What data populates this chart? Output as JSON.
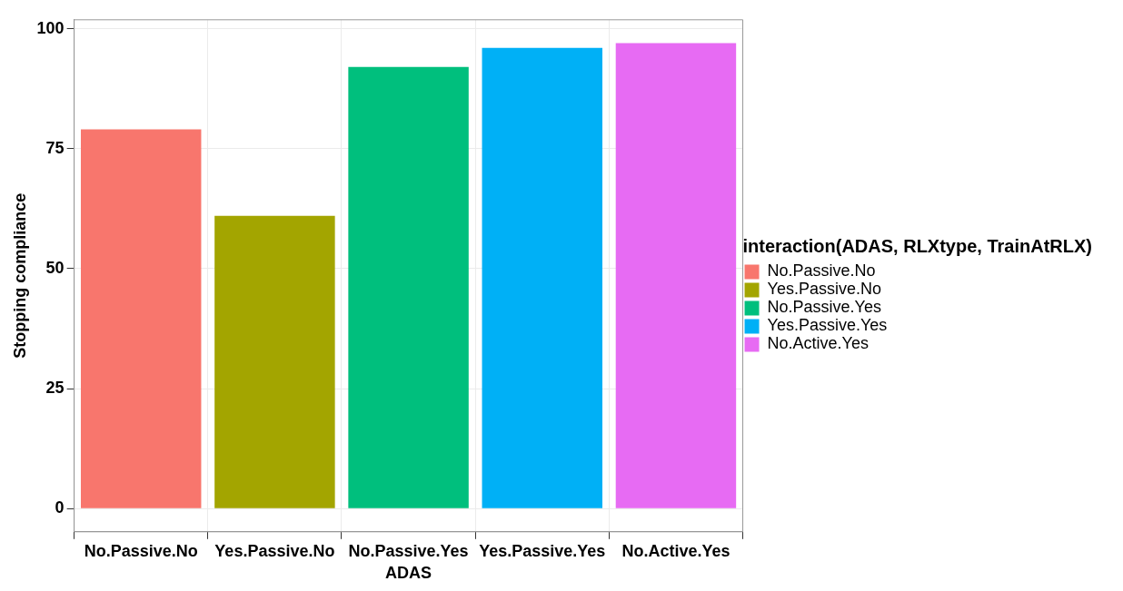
{
  "chart_data": {
    "type": "bar",
    "xlabel": "ADAS",
    "ylabel": "Stopping compliance",
    "legend_title": "interaction(ADAS, RLXtype, TrainAtRLX)",
    "categories": [
      "No.Passive.No",
      "Yes.Passive.No",
      "No.Passive.Yes",
      "Yes.Passive.Yes",
      "No.Active.Yes"
    ],
    "series": [
      {
        "name": "No.Passive.No",
        "color": "#f8766d",
        "values": [
          79,
          null,
          null,
          null,
          null
        ]
      },
      {
        "name": "Yes.Passive.No",
        "color": "#a3a500",
        "values": [
          null,
          61,
          null,
          null,
          null
        ]
      },
      {
        "name": "No.Passive.Yes",
        "color": "#00bf7d",
        "values": [
          null,
          null,
          92,
          null,
          null
        ]
      },
      {
        "name": "Yes.Passive.Yes",
        "color": "#00b0f6",
        "values": [
          null,
          null,
          null,
          96,
          null
        ]
      },
      {
        "name": "No.Active.Yes",
        "color": "#e76bf3",
        "values": [
          null,
          null,
          null,
          null,
          97
        ]
      }
    ],
    "ylim": [
      -4.85,
      101.85
    ],
    "yticks": [
      0,
      25,
      50,
      75,
      100
    ],
    "grid": true,
    "legend": "right"
  }
}
